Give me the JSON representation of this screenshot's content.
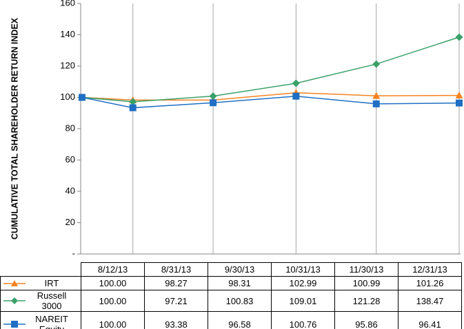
{
  "chart_data": {
    "type": "line",
    "y_label": "CUMULATIVE TOTAL SHAREHOLDER RETURN INDEX",
    "categories": [
      "8/12/13",
      "8/31/13",
      "9/30/13",
      "10/31/13",
      "11/30/13",
      "12/31/13"
    ],
    "ylim": [
      0,
      160
    ],
    "yticks": [
      {
        "value": 0,
        "label": "-"
      },
      20,
      40,
      60,
      80,
      100,
      120,
      140,
      160
    ],
    "series": [
      {
        "name": "IRT",
        "color": "#f58220",
        "marker": "triangle",
        "values": [
          100,
          98.27,
          98.31,
          102.99,
          100.99,
          101.26
        ],
        "value_labels": [
          "100.00",
          "98.27",
          "98.31",
          "102.99",
          "100.99",
          "101.26"
        ]
      },
      {
        "name": "Russell 3000",
        "color": "#3aa06a",
        "marker": "diamond",
        "values": [
          100,
          97.21,
          100.83,
          109.01,
          121.28,
          138.47
        ],
        "value_labels": [
          "100.00",
          "97.21",
          "100.83",
          "109.01",
          "121.28",
          "138.47"
        ]
      },
      {
        "name": "NAREIT Equity",
        "color": "#1f6fc4",
        "marker": "square",
        "values": [
          100,
          93.38,
          96.58,
          100.76,
          95.86,
          96.41
        ],
        "value_labels": [
          "100.00",
          "93.38",
          "96.58",
          "100.76",
          "95.86",
          "96.41"
        ]
      }
    ]
  }
}
